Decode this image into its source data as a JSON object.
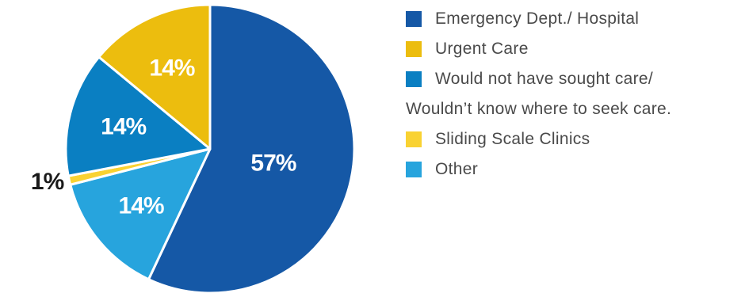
{
  "chart_data": {
    "type": "pie",
    "slices": [
      {
        "name": "Emergency Dept./ Hospital",
        "value": 57,
        "label": "57%",
        "color": "#1558a6"
      },
      {
        "name": "Other",
        "value": 14,
        "label": "14%",
        "color": "#27a4dd"
      },
      {
        "name": "Sliding Scale Clinics",
        "value": 1,
        "label": "1%",
        "color": "#f9d232"
      },
      {
        "name": "Would not have sought care/ Wouldn’t know where to seek care.",
        "value": 14,
        "label": "14%",
        "color": "#0a7fc2"
      },
      {
        "name": "Urgent Care",
        "value": 14,
        "label": "14%",
        "color": "#ecbd0e"
      }
    ],
    "legend": {
      "placement": "right",
      "items": [
        {
          "label": "Emergency Dept./ Hospital",
          "color": "#1558a6"
        },
        {
          "label": "Urgent Care",
          "color": "#ecbd0e"
        },
        {
          "label": "Would not have sought care/",
          "continuation": "Wouldn’t know where to seek care.",
          "color": "#0a7fc2"
        },
        {
          "label": "Sliding Scale Clinics",
          "color": "#f9d232"
        },
        {
          "label": "Other",
          "color": "#27a4dd"
        }
      ]
    }
  }
}
